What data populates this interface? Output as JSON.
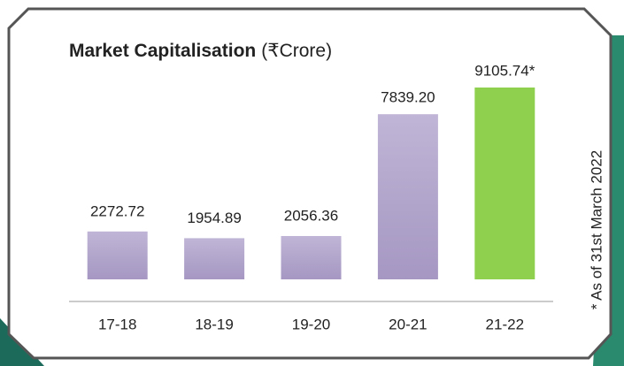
{
  "chart_data": {
    "type": "bar",
    "title": "Market Capitalisation",
    "unit": "(₹Crore)",
    "note": "* As of 31st March 2022",
    "categories": [
      "17-18",
      "18-19",
      "19-20",
      "20-21",
      "21-22"
    ],
    "values": [
      2272.72,
      1954.89,
      2056.36,
      7839.2,
      9105.74
    ],
    "value_labels": [
      "2272.72",
      "1954.89",
      "2056.36",
      "7839.20",
      "9105.74*"
    ],
    "colors": [
      "#b2a5cb",
      "#b2a5cb",
      "#b2a5cb",
      "#b2a5cb",
      "#8fd14f"
    ]
  }
}
